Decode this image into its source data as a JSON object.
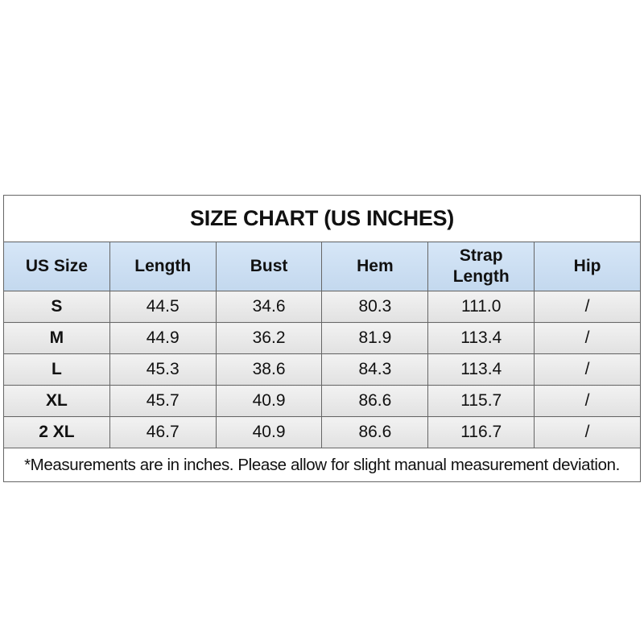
{
  "table": {
    "title": "SIZE CHART (US INCHES)",
    "header": [
      "US Size",
      "Length",
      "Bust",
      "Hem",
      "Strap Length",
      "Hip"
    ],
    "rows": [
      [
        "S",
        "44.5",
        "34.6",
        "80.3",
        "111.0",
        "/"
      ],
      [
        "M",
        "44.9",
        "36.2",
        "81.9",
        "113.4",
        "/"
      ],
      [
        "L",
        "45.3",
        "38.6",
        "84.3",
        "113.4",
        "/"
      ],
      [
        "XL",
        "45.7",
        "40.9",
        "86.6",
        "115.7",
        "/"
      ],
      [
        "2 XL",
        "46.7",
        "40.9",
        "86.6",
        "116.7",
        "/"
      ]
    ],
    "note": "*Measurements are in inches. Please allow for slight manual measurement deviation."
  }
}
